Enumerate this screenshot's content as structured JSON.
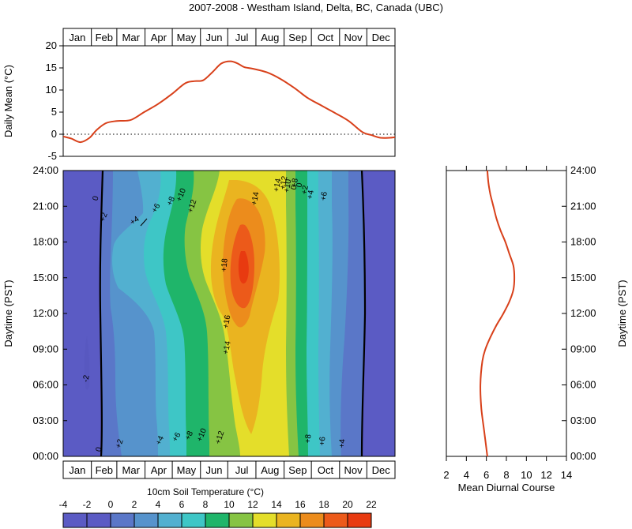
{
  "title": "2007-2008 - Westham Island, Delta, BC, Canada (UBC)",
  "chart_data": [
    {
      "type": "line",
      "panel": "daily-mean",
      "ylabel": "Daily Mean (°C)",
      "months": [
        "Jan",
        "Feb",
        "Mar",
        "Apr",
        "May",
        "Jun",
        "Jul",
        "Aug",
        "Sep",
        "Oct",
        "Nov",
        "Dec"
      ],
      "ylim": [
        -5,
        20
      ],
      "yticks": [
        "-5",
        "0",
        "5",
        "10",
        "15",
        "20"
      ],
      "reference_line": 0,
      "line_color": "#d8401a",
      "x_day": [
        1,
        10,
        20,
        30,
        38,
        48,
        60,
        75,
        90,
        105,
        120,
        135,
        145,
        155,
        165,
        175,
        185,
        193,
        200,
        210,
        225,
        240,
        255,
        270,
        285,
        300,
        315,
        330,
        340,
        350,
        360,
        366
      ],
      "y": [
        -0.5,
        -1.0,
        -1.8,
        -0.8,
        1.0,
        2.5,
        3.0,
        3.2,
        5.0,
        6.8,
        9.0,
        11.5,
        12.0,
        12.2,
        14.0,
        16.0,
        16.5,
        16.0,
        15.2,
        14.8,
        14.0,
        12.5,
        10.5,
        8.2,
        6.5,
        4.8,
        3.0,
        0.5,
        -0.2,
        -0.8,
        -0.8,
        -0.7
      ]
    },
    {
      "type": "heatmap",
      "panel": "soil-temperature-contour",
      "ylabel": "Daytime (PST)",
      "months": [
        "Jan",
        "Feb",
        "Mar",
        "Apr",
        "May",
        "Jun",
        "Jul",
        "Aug",
        "Sep",
        "Oct",
        "Nov",
        "Dec"
      ],
      "yticks": [
        "00:00",
        "03:00",
        "06:00",
        "09:00",
        "12:00",
        "15:00",
        "18:00",
        "21:00",
        "24:00"
      ],
      "colorbar_label": "10cm Soil Temperature (°C)",
      "levels": [
        -4,
        -2,
        0,
        2,
        4,
        6,
        8,
        10,
        12,
        14,
        16,
        18,
        20,
        22
      ],
      "level_labels": [
        "-4",
        "-2",
        "0",
        "2",
        "4",
        "6",
        "8",
        "10",
        "12",
        "14",
        "16",
        "18",
        "20",
        "22"
      ],
      "colors": [
        "#5b5bc4",
        "#5b5bc4",
        "#5a77c8",
        "#5693cc",
        "#52b0d0",
        "#3ec6c6",
        "#1fb56a",
        "#86c443",
        "#e4de2a",
        "#eab420",
        "#ec8c1c",
        "#ec5a1a",
        "#e83a10"
      ],
      "contour_labels": [
        "0",
        "0",
        "+2",
        "+2",
        "+4",
        "+4",
        "+6",
        "+6",
        "+8",
        "+8",
        "+10",
        "+10",
        "+12",
        "+12",
        "+14",
        "+14",
        "+16",
        "+18",
        "0",
        "0",
        "+2",
        "+4",
        "+6",
        "+8",
        "+10",
        "+12",
        "+14",
        "+4",
        "+6",
        "+8",
        "-2"
      ]
    },
    {
      "type": "line",
      "panel": "mean-diurnal-course",
      "xlabel": "Mean Diurnal Course",
      "ylabel": "Daytime (PST)",
      "xlim": [
        2,
        14
      ],
      "xticks": [
        "2",
        "4",
        "6",
        "8",
        "10",
        "12",
        "14"
      ],
      "yticks": [
        "00:00",
        "03:00",
        "06:00",
        "09:00",
        "12:00",
        "15:00",
        "18:00",
        "21:00",
        "24:00"
      ],
      "line_color": "#d8401a",
      "hour": [
        0,
        2,
        4,
        6,
        8,
        9,
        10,
        11,
        12,
        13,
        14,
        15,
        16,
        17,
        18,
        19,
        20,
        21,
        22,
        23,
        24
      ],
      "temp": [
        6.1,
        5.8,
        5.5,
        5.4,
        5.6,
        5.9,
        6.4,
        7.0,
        7.7,
        8.3,
        8.7,
        8.8,
        8.7,
        8.3,
        7.9,
        7.4,
        7.0,
        6.7,
        6.4,
        6.2,
        6.1
      ]
    }
  ]
}
